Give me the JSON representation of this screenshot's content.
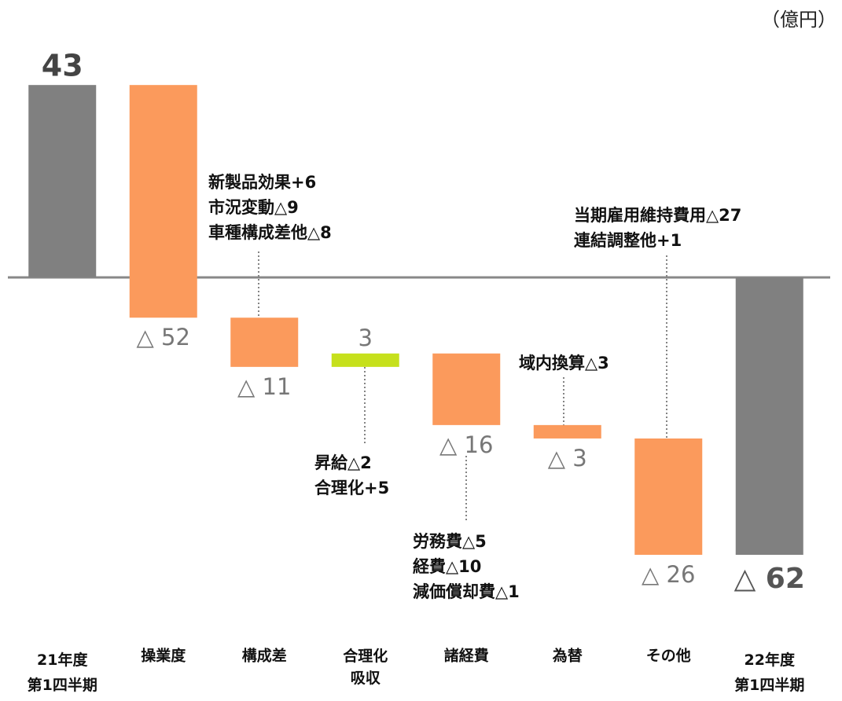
{
  "chart_data": {
    "type": "waterfall",
    "unit": "（億円）",
    "categories": [
      "21年度\n第1四半期",
      "操業度",
      "構成差",
      "合理化\n吸収",
      "諸経費",
      "為替",
      "その他",
      "22年度\n第1四半期"
    ],
    "values": [
      43,
      -52,
      -11,
      3,
      -16,
      -3,
      -26,
      -62
    ],
    "value_labels": [
      "43",
      "△ 52",
      "△ 11",
      "3",
      "△ 16",
      "△ 3",
      "△ 26",
      "△ 62"
    ],
    "colors": [
      "#808080",
      "#fb9a5c",
      "#fb9a5c",
      "#c6e01c",
      "#fb9a5c",
      "#fb9a5c",
      "#fb9a5c",
      "#808080"
    ],
    "ylim": [
      -75,
      62
    ],
    "annotations": [
      [
        "新製品効果+6",
        "市況変動△9",
        "車種構成差他△8"
      ],
      [
        "昇給△2",
        "合理化+5"
      ],
      [
        "労務費△5",
        "経費△10",
        "減価償却費△1"
      ],
      [
        "域内換算△3"
      ],
      [
        "当期雇用維持費用△27",
        "連結調整他+1"
      ]
    ]
  }
}
